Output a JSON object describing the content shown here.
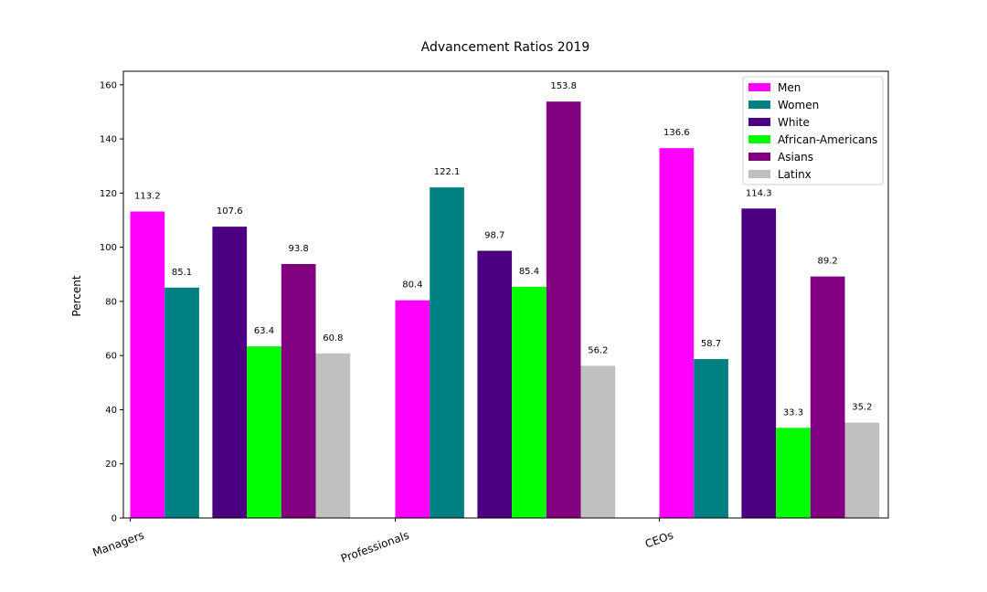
{
  "chart_data": {
    "type": "bar",
    "title": "Advancement Ratios 2019",
    "xlabel": "",
    "ylabel": "Percent",
    "ylim": [
      0,
      165
    ],
    "yticks": [
      0,
      20,
      40,
      60,
      80,
      100,
      120,
      140,
      160
    ],
    "grid": false,
    "legend_position": "top-right",
    "categories": [
      "Managers",
      "Professionals",
      "CEOs"
    ],
    "groups": [
      {
        "group": "gender",
        "series": [
          "Men",
          "Women"
        ]
      },
      {
        "group": "race",
        "series": [
          "White",
          "African-Americans",
          "Asians",
          "Latinx"
        ]
      }
    ],
    "series": [
      {
        "name": "Men",
        "color": "#ff00ff",
        "values": [
          113.2,
          80.4,
          136.6
        ],
        "labels": [
          "113.2",
          "80.4",
          "136.6"
        ]
      },
      {
        "name": "Women",
        "color": "#008080",
        "values": [
          85.1,
          122.1,
          58.7
        ],
        "labels": [
          "85.1",
          "122.1",
          "58.7"
        ]
      },
      {
        "name": "White",
        "color": "#4b0082",
        "values": [
          107.6,
          98.7,
          114.3
        ],
        "labels": [
          "107.6",
          "98.7",
          "114.3"
        ]
      },
      {
        "name": "African-Americans",
        "color": "#00ff00",
        "values": [
          63.4,
          85.4,
          33.3
        ],
        "labels": [
          "63.4",
          "85.4",
          "33.3"
        ]
      },
      {
        "name": "Asians",
        "color": "#800080",
        "values": [
          93.8,
          153.8,
          89.2
        ],
        "labels": [
          "93.8",
          "153.8",
          "89.2"
        ]
      },
      {
        "name": "Latinx",
        "color": "#c0c0c0",
        "values": [
          60.8,
          56.2,
          35.2
        ],
        "labels": [
          "60.8",
          "56.2",
          "35.2"
        ]
      }
    ]
  }
}
